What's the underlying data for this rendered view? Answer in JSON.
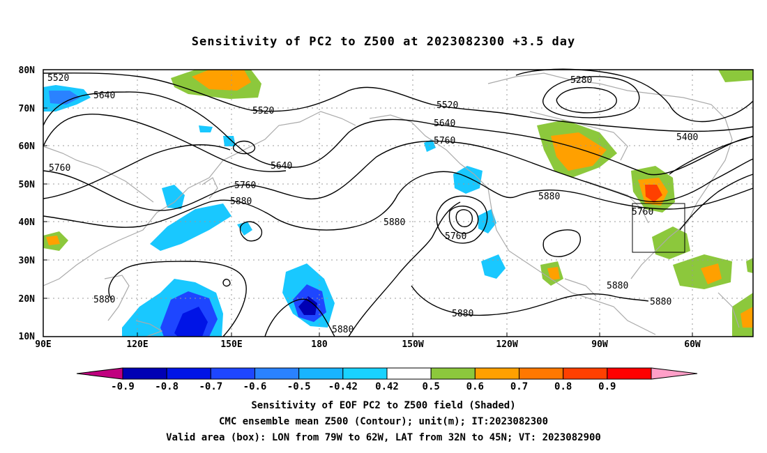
{
  "title": "Sensitivity of PC2 to Z500 at 2023082300 +3.5 day",
  "map": {
    "lat_ticks": [
      "80N",
      "70N",
      "60N",
      "50N",
      "40N",
      "30N",
      "20N",
      "10N"
    ],
    "lon_ticks": [
      "90E",
      "120E",
      "150E",
      "180",
      "150W",
      "120W",
      "90W",
      "60W"
    ],
    "contour_labels": [
      "5520",
      "5640",
      "5520",
      "5280",
      "5520",
      "5640",
      "5760",
      "5400",
      "5760",
      "5640",
      "5760",
      "5880",
      "5880",
      "5880",
      "5760",
      "5760",
      "5880",
      "5880",
      "5880",
      "5880",
      "5880"
    ],
    "valid_box": {
      "lon_from": "79W",
      "lon_to": "62W",
      "lat_from": "32N",
      "lat_to": "45N"
    }
  },
  "colorbar": {
    "labels": [
      "-0.9",
      "-0.8",
      "-0.7",
      "-0.6",
      "-0.5",
      "-0.42",
      "0.42",
      "0.5",
      "0.6",
      "0.7",
      "0.8",
      "0.9"
    ],
    "colors": [
      "#c0007f",
      "#0000b4",
      "#0014e6",
      "#1e46ff",
      "#2a82ff",
      "#18b4ff",
      "#19d2ff",
      "#ffffff",
      "#8cc83c",
      "#ffa000",
      "#ff7800",
      "#ff4000",
      "#ff0000",
      "#ff9fc8"
    ]
  },
  "captions": [
    "Sensitivity of EOF PC2 to Z500 field (Shaded)",
    "CMC ensemble mean Z500 (Contour); unit(m); IT:2023082300",
    "Valid area (box): LON from 79W to 62W, LAT from 32N to 45N; VT: 2023082900"
  ]
}
